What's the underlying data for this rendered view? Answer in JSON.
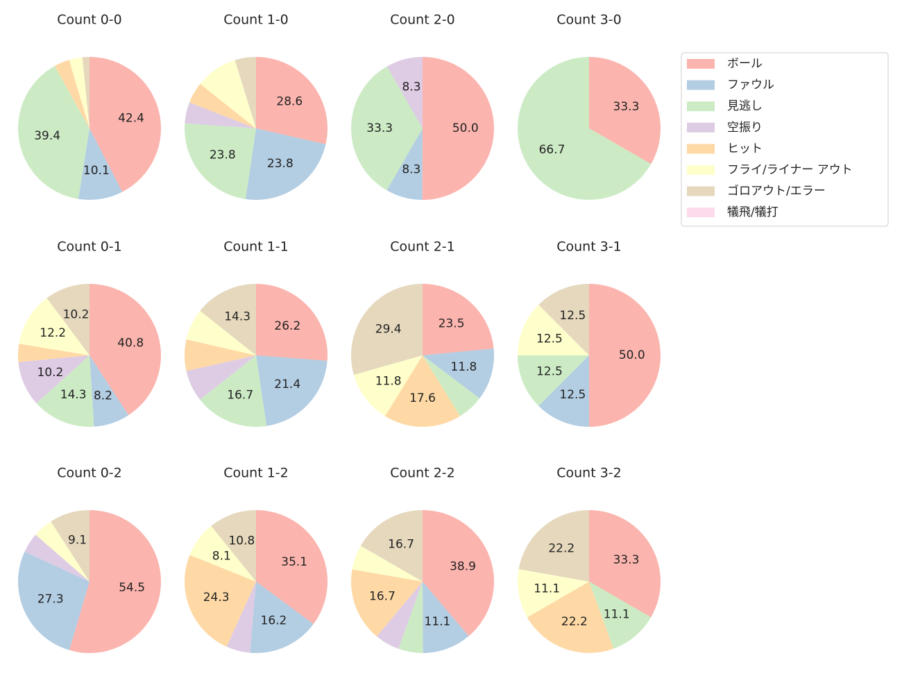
{
  "legend": [
    {
      "name": "ボール",
      "color": "#fbb4ae"
    },
    {
      "name": "ファウル",
      "color": "#b3cde3"
    },
    {
      "name": "見逃し",
      "color": "#ccebc5"
    },
    {
      "name": "空振り",
      "color": "#decbe4"
    },
    {
      "name": "ヒット",
      "color": "#fed9a6"
    },
    {
      "name": "フライ/ライナー アウト",
      "color": "#ffffcc"
    },
    {
      "name": "ゴロアウト/エラー",
      "color": "#e5d8bd"
    },
    {
      "name": "犠飛/犠打",
      "color": "#fddaec"
    }
  ],
  "chart_data": [
    {
      "type": "pie",
      "title": "Count 0-0",
      "values": [
        42.4,
        10.1,
        39.4,
        0,
        3.5,
        3.0,
        1.6,
        0
      ],
      "value_labels": [
        "42.4",
        "10.1",
        "39.4",
        null,
        null,
        null,
        null,
        null
      ]
    },
    {
      "type": "pie",
      "title": "Count 1-0",
      "values": [
        28.6,
        23.8,
        23.8,
        4.8,
        4.8,
        9.5,
        4.8,
        0
      ],
      "value_labels": [
        "28.6",
        "23.8",
        "23.8",
        null,
        null,
        null,
        null,
        null
      ]
    },
    {
      "type": "pie",
      "title": "Count 2-0",
      "values": [
        50.0,
        8.3,
        33.3,
        8.3,
        0,
        0,
        0,
        0
      ],
      "value_labels": [
        "50.0",
        "8.3",
        "33.3",
        "8.3",
        null,
        null,
        null,
        null
      ]
    },
    {
      "type": "pie",
      "title": "Count 3-0",
      "values": [
        33.3,
        0,
        66.7,
        0,
        0,
        0,
        0,
        0
      ],
      "value_labels": [
        "33.3",
        null,
        "66.7",
        null,
        null,
        null,
        null,
        null
      ]
    },
    {
      "type": "pie",
      "title": "Count 0-1",
      "values": [
        40.8,
        8.2,
        14.3,
        10.2,
        4.1,
        12.2,
        10.2,
        0
      ],
      "value_labels": [
        "40.8",
        "8.2",
        "14.3",
        "10.2",
        null,
        "12.2",
        "10.2",
        null
      ]
    },
    {
      "type": "pie",
      "title": "Count 1-1",
      "values": [
        26.2,
        21.4,
        16.7,
        7.1,
        7.1,
        7.1,
        14.3,
        0
      ],
      "value_labels": [
        "26.2",
        "21.4",
        "16.7",
        null,
        null,
        null,
        "14.3",
        null
      ]
    },
    {
      "type": "pie",
      "title": "Count 2-1",
      "values": [
        23.5,
        11.8,
        5.9,
        0,
        17.6,
        11.8,
        29.4,
        0
      ],
      "value_labels": [
        "23.5",
        "11.8",
        null,
        null,
        "17.6",
        "11.8",
        "29.4",
        null
      ]
    },
    {
      "type": "pie",
      "title": "Count 3-1",
      "values": [
        50.0,
        12.5,
        12.5,
        0,
        0,
        12.5,
        12.5,
        0
      ],
      "value_labels": [
        "50.0",
        "12.5",
        "12.5",
        null,
        null,
        "12.5",
        "12.5",
        null
      ]
    },
    {
      "type": "pie",
      "title": "Count 0-2",
      "values": [
        54.5,
        27.3,
        0,
        4.5,
        0,
        4.5,
        9.1,
        0
      ],
      "value_labels": [
        "54.5",
        "27.3",
        null,
        null,
        null,
        null,
        "9.1",
        null
      ]
    },
    {
      "type": "pie",
      "title": "Count 1-2",
      "values": [
        35.1,
        16.2,
        0,
        5.4,
        24.3,
        8.1,
        10.8,
        0
      ],
      "value_labels": [
        "35.1",
        "16.2",
        null,
        null,
        "24.3",
        "8.1",
        "10.8",
        null
      ]
    },
    {
      "type": "pie",
      "title": "Count 2-2",
      "values": [
        38.9,
        11.1,
        5.6,
        5.6,
        16.7,
        5.6,
        16.7,
        0
      ],
      "value_labels": [
        "38.9",
        "11.1",
        null,
        null,
        "16.7",
        null,
        "16.7",
        null
      ]
    },
    {
      "type": "pie",
      "title": "Count 3-2",
      "values": [
        33.3,
        0,
        11.1,
        0,
        22.2,
        11.1,
        22.2,
        0
      ],
      "value_labels": [
        "33.3",
        null,
        "11.1",
        null,
        "22.2",
        "11.1",
        "22.2",
        null
      ]
    }
  ]
}
